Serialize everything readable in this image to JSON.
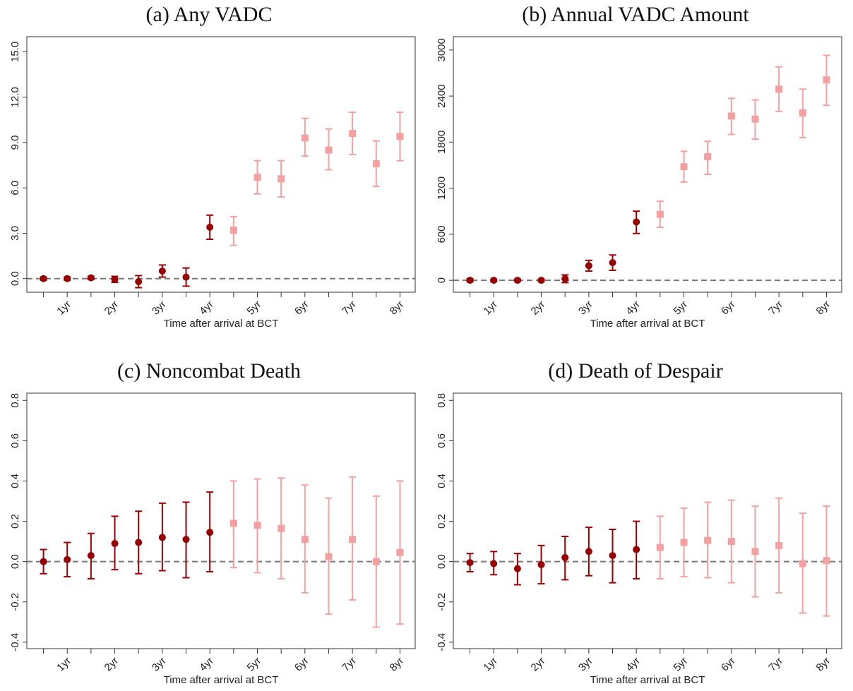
{
  "chart_data": [
    {
      "type": "errorbar",
      "title": "(a) Any VADC",
      "x_label": "Time after arrival at BCT",
      "xlim": [
        0.15,
        8.32
      ],
      "ylim": [
        -0.9,
        16.0
      ],
      "hline": 0,
      "xticks": [
        {
          "value": 1,
          "label": "1yr"
        },
        {
          "value": 2,
          "label": "2yr"
        },
        {
          "value": 3,
          "label": "3yr"
        },
        {
          "value": 4,
          "label": "4yr"
        },
        {
          "value": 5,
          "label": "5yr"
        },
        {
          "value": 6,
          "label": "6yr"
        },
        {
          "value": 7,
          "label": "7yr"
        },
        {
          "value": 8,
          "label": "8yr"
        }
      ],
      "xminorticks": [
        0.5,
        1.5,
        2.5,
        3.5,
        4.5,
        5.5,
        6.5,
        7.5
      ],
      "yticks": [
        {
          "value": 0,
          "label": "0.0"
        },
        {
          "value": 3,
          "label": "3.0"
        },
        {
          "value": 6,
          "label": "6.0"
        },
        {
          "value": 9,
          "label": "9.0"
        },
        {
          "value": 12,
          "label": "12.0"
        },
        {
          "value": 15,
          "label": "15.0"
        }
      ],
      "series": [
        {
          "color": "#990000",
          "marker": "circle",
          "x": [
            0.5,
            1,
            1.5,
            2,
            2.5,
            3,
            3.5,
            4
          ],
          "values": [
            0,
            0,
            0.05,
            -0.05,
            -0.2,
            0.5,
            0.1,
            3.4
          ],
          "lower": [
            -0.1,
            -0.1,
            -0.05,
            -0.25,
            -0.6,
            0.1,
            -0.5,
            2.6
          ],
          "upper": [
            0.1,
            0.1,
            0.15,
            0.15,
            0.2,
            0.9,
            0.7,
            4.2
          ]
        },
        {
          "color": "#f4a0a0",
          "marker": "square",
          "x": [
            4.5,
            5,
            5.5,
            6,
            6.5,
            7,
            7.5,
            8
          ],
          "values": [
            3.2,
            6.7,
            6.6,
            9.3,
            8.5,
            9.6,
            7.6,
            9.4
          ],
          "lower": [
            2.2,
            5.6,
            5.4,
            8.1,
            7.2,
            8.2,
            6.1,
            7.8
          ],
          "upper": [
            4.1,
            7.8,
            7.8,
            10.6,
            9.9,
            11.0,
            9.1,
            11.0
          ]
        }
      ]
    },
    {
      "type": "errorbar",
      "title": "(b) Annual VADC Amount",
      "x_label": "Time after arrival at BCT",
      "xlim": [
        0.15,
        8.32
      ],
      "ylim": [
        -155,
        3173
      ],
      "hline": 0,
      "xticks": [
        {
          "value": 1,
          "label": "1yr"
        },
        {
          "value": 2,
          "label": "2yr"
        },
        {
          "value": 3,
          "label": "3yr"
        },
        {
          "value": 4,
          "label": "4yr"
        },
        {
          "value": 5,
          "label": "5yr"
        },
        {
          "value": 6,
          "label": "6yr"
        },
        {
          "value": 7,
          "label": "7yr"
        },
        {
          "value": 8,
          "label": "8yr"
        }
      ],
      "xminorticks": [
        0.5,
        1.5,
        2.5,
        3.5,
        4.5,
        5.5,
        6.5,
        7.5
      ],
      "yticks": [
        0,
        600,
        1200,
        1800,
        2400,
        3000
      ],
      "series": [
        {
          "color": "#990000",
          "marker": "circle",
          "x": [
            0.5,
            1,
            1.5,
            2,
            2.5,
            3,
            3.5,
            4
          ],
          "values": [
            0,
            0,
            0,
            0,
            20,
            190,
            230,
            760
          ],
          "lower": [
            -20,
            -15,
            -15,
            -15,
            -30,
            120,
            130,
            610
          ],
          "upper": [
            20,
            15,
            15,
            15,
            70,
            260,
            330,
            900
          ]
        },
        {
          "color": "#f4a0a0",
          "marker": "square",
          "x": [
            4.5,
            5,
            5.5,
            6,
            6.5,
            7,
            7.5,
            8
          ],
          "values": [
            860,
            1480,
            1610,
            2140,
            2100,
            2490,
            2180,
            2610
          ],
          "lower": [
            690,
            1280,
            1380,
            1900,
            1840,
            2200,
            1860,
            2280
          ],
          "upper": [
            1030,
            1680,
            1810,
            2370,
            2350,
            2780,
            2490,
            2930
          ]
        }
      ]
    },
    {
      "type": "errorbar",
      "title": "(c) Noncombat Death",
      "x_label": "Time after arrival at BCT",
      "xlim": [
        0.15,
        8.32
      ],
      "ylim": [
        -0.432,
        0.836
      ],
      "hline": 0,
      "xticks": [
        {
          "value": 1,
          "label": "1yr"
        },
        {
          "value": 2,
          "label": "2yr"
        },
        {
          "value": 3,
          "label": "3yr"
        },
        {
          "value": 4,
          "label": "4yr"
        },
        {
          "value": 5,
          "label": "5yr"
        },
        {
          "value": 6,
          "label": "6yr"
        },
        {
          "value": 7,
          "label": "7yr"
        },
        {
          "value": 8,
          "label": "8yr"
        }
      ],
      "xminorticks": [
        0.5,
        1.5,
        2.5,
        3.5,
        4.5,
        5.5,
        6.5,
        7.5
      ],
      "yticks": [
        -0.4,
        -0.2,
        {
          "value": 0,
          "label": "0.0"
        },
        0.2,
        0.4,
        0.6,
        0.8
      ],
      "series": [
        {
          "color": "#990000",
          "marker": "circle",
          "x": [
            0.5,
            1,
            1.5,
            2,
            2.5,
            3,
            3.5,
            4
          ],
          "values": [
            0,
            0.01,
            0.03,
            0.09,
            0.095,
            0.12,
            0.11,
            0.145
          ],
          "lower": [
            -0.06,
            -0.075,
            -0.085,
            -0.04,
            -0.06,
            -0.045,
            -0.08,
            -0.05
          ],
          "upper": [
            0.06,
            0.095,
            0.14,
            0.225,
            0.25,
            0.29,
            0.295,
            0.345
          ]
        },
        {
          "color": "#f4a0a0",
          "marker": "square",
          "x": [
            4.5,
            5,
            5.5,
            6,
            6.5,
            7,
            7.5,
            8
          ],
          "values": [
            0.19,
            0.18,
            0.165,
            0.11,
            0.025,
            0.11,
            0,
            0.045
          ],
          "lower": [
            -0.03,
            -0.055,
            -0.085,
            -0.155,
            -0.26,
            -0.19,
            -0.325,
            -0.31
          ],
          "upper": [
            0.4,
            0.41,
            0.415,
            0.38,
            0.315,
            0.42,
            0.325,
            0.4
          ]
        }
      ]
    },
    {
      "type": "errorbar",
      "title": "(d) Death of Despair",
      "x_label": "Time after arrival at BCT",
      "xlim": [
        0.15,
        8.32
      ],
      "ylim": [
        -0.432,
        0.836
      ],
      "hline": 0,
      "xticks": [
        {
          "value": 1,
          "label": "1yr"
        },
        {
          "value": 2,
          "label": "2yr"
        },
        {
          "value": 3,
          "label": "3yr"
        },
        {
          "value": 4,
          "label": "4yr"
        },
        {
          "value": 5,
          "label": "5yr"
        },
        {
          "value": 6,
          "label": "6yr"
        },
        {
          "value": 7,
          "label": "7yr"
        },
        {
          "value": 8,
          "label": "8yr"
        }
      ],
      "xminorticks": [
        0.5,
        1.5,
        2.5,
        3.5,
        4.5,
        5.5,
        6.5,
        7.5
      ],
      "yticks": [
        -0.4,
        -0.2,
        {
          "value": 0,
          "label": "0.0"
        },
        0.2,
        0.4,
        0.6,
        0.8
      ],
      "series": [
        {
          "color": "#990000",
          "marker": "circle",
          "x": [
            0.5,
            1,
            1.5,
            2,
            2.5,
            3,
            3.5,
            4
          ],
          "values": [
            -0.005,
            -0.01,
            -0.035,
            -0.015,
            0.02,
            0.05,
            0.03,
            0.06
          ],
          "lower": [
            -0.05,
            -0.065,
            -0.115,
            -0.11,
            -0.09,
            -0.07,
            -0.105,
            -0.085
          ],
          "upper": [
            0.04,
            0.05,
            0.04,
            0.08,
            0.125,
            0.17,
            0.16,
            0.2
          ]
        },
        {
          "color": "#f4a0a0",
          "marker": "square",
          "x": [
            4.5,
            5,
            5.5,
            6,
            6.5,
            7,
            7.5,
            8
          ],
          "values": [
            0.07,
            0.095,
            0.105,
            0.1,
            0.05,
            0.08,
            -0.01,
            0.005
          ],
          "lower": [
            -0.085,
            -0.075,
            -0.08,
            -0.105,
            -0.175,
            -0.155,
            -0.255,
            -0.27
          ],
          "upper": [
            0.225,
            0.265,
            0.295,
            0.305,
            0.275,
            0.315,
            0.24,
            0.275
          ]
        }
      ]
    }
  ]
}
